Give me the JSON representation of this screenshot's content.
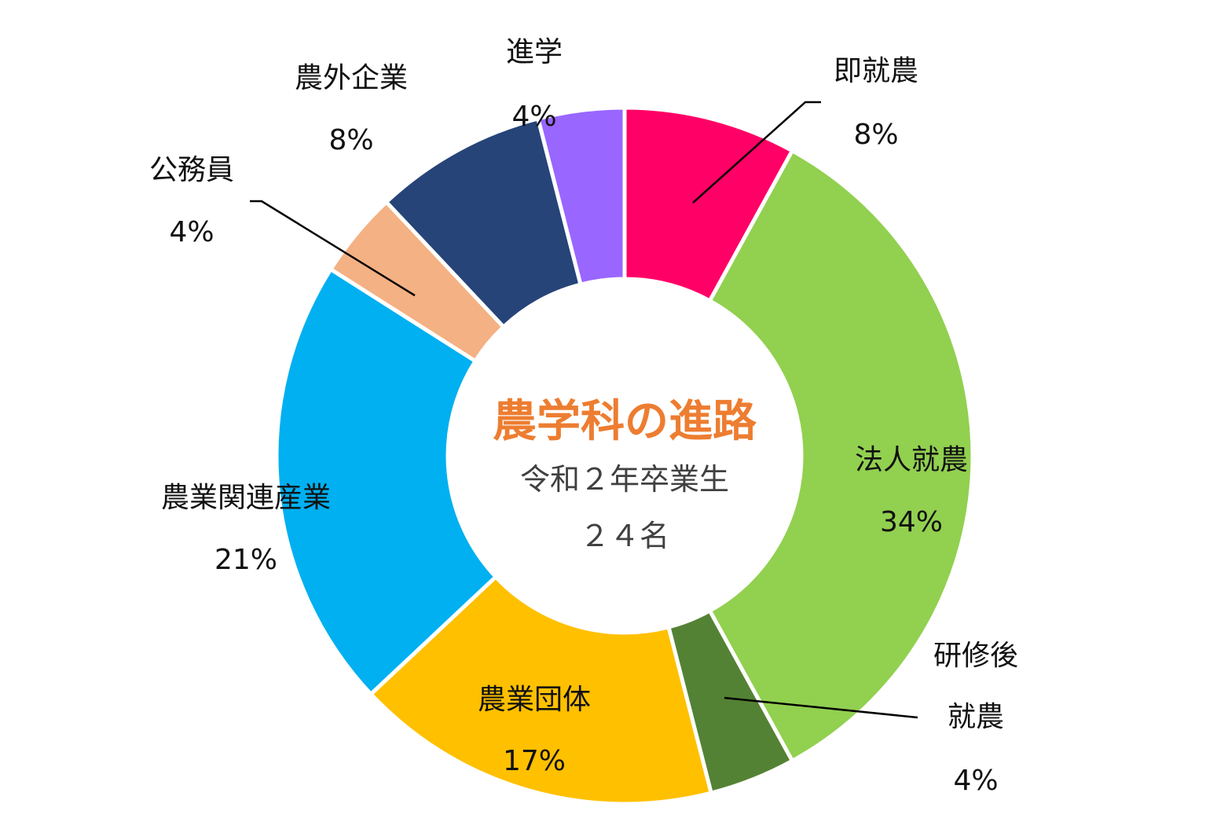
{
  "chart_data": {
    "type": "pie",
    "variant": "donut",
    "title": "農学科の進路",
    "subtitle": "令和２年卒業生",
    "total_label": "２４名",
    "title_color": "#ED7D31",
    "categories": [
      "即就農",
      "法人就農",
      "研修後就農",
      "農業団体",
      "農業関連産業",
      "公務員",
      "農外企業",
      "進学"
    ],
    "values": [
      8,
      34,
      4,
      17,
      21,
      4,
      8,
      4
    ],
    "value_labels": [
      "8%",
      "34%",
      "4%",
      "17%",
      "21%",
      "4%",
      "8%",
      "4%"
    ],
    "label_lines": [
      [
        "即就農"
      ],
      [
        "法人就農"
      ],
      [
        "研修後",
        "就農"
      ],
      [
        "農業団体"
      ],
      [
        "農業関連産業"
      ],
      [
        "公務員"
      ],
      [
        "農外企業"
      ],
      [
        "進学"
      ]
    ],
    "colors": [
      "#FF0066",
      "#92D050",
      "#548235",
      "#FFC000",
      "#00B0F0",
      "#F4B183",
      "#264478",
      "#9966FF"
    ],
    "start_angle": "12 o'clock",
    "direction": "clockwise",
    "legend": "none"
  }
}
